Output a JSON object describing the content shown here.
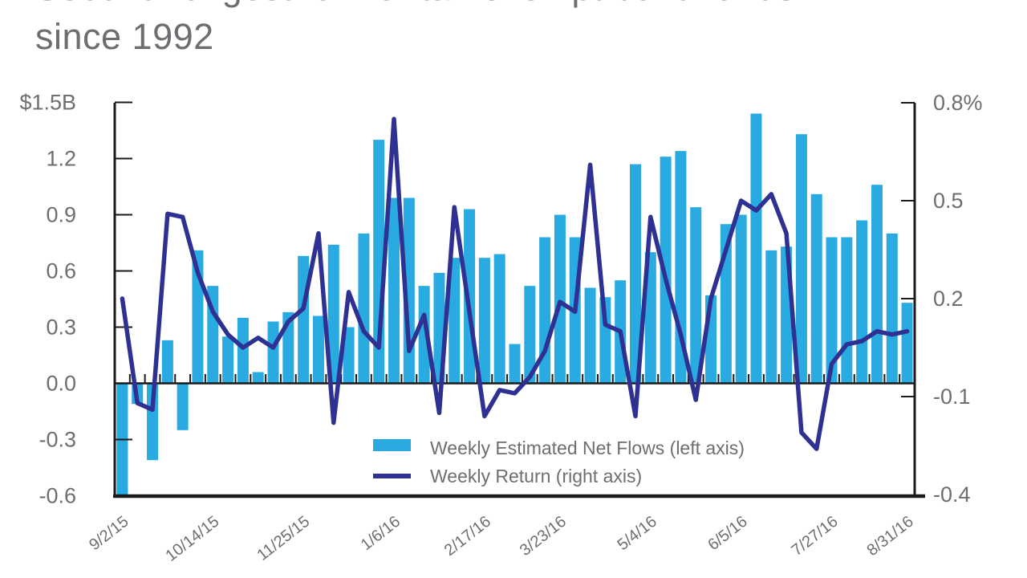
{
  "title": {
    "line1": "Second-longest run for tax-exempt bond funds",
    "line2": "since 1992"
  },
  "colors": {
    "bars": "#29abe2",
    "line": "#2e3192",
    "text_gray": "#6d6e71",
    "axis_black": "#1a1a1a"
  },
  "chart_data": {
    "type": "bar+line dual-axis",
    "weeks": 53,
    "x_tick_labels": [
      {
        "i": 0,
        "label": "9/2/15"
      },
      {
        "i": 6,
        "label": "10/14/15"
      },
      {
        "i": 12,
        "label": "11/25/15"
      },
      {
        "i": 18,
        "label": "1/6/16"
      },
      {
        "i": 24,
        "label": "2/17/16"
      },
      {
        "i": 29,
        "label": "3/23/16"
      },
      {
        "i": 35,
        "label": "5/4/16"
      },
      {
        "i": 41,
        "label": "6/5/16"
      },
      {
        "i": 47,
        "label": "7/27/16"
      },
      {
        "i": 52,
        "label": "8/31/16"
      }
    ],
    "left_axis": {
      "unit": "$B",
      "range": [
        -0.6,
        1.5
      ],
      "ticks": [
        {
          "v": 1.5,
          "label": "$1.5B"
        },
        {
          "v": 1.2,
          "label": "1.2"
        },
        {
          "v": 0.9,
          "label": "0.9"
        },
        {
          "v": 0.6,
          "label": "0.6"
        },
        {
          "v": 0.3,
          "label": "0.3"
        },
        {
          "v": 0.0,
          "label": "0.0"
        },
        {
          "v": -0.3,
          "label": "-0.3"
        },
        {
          "v": -0.6,
          "label": "-0.6"
        }
      ]
    },
    "right_axis": {
      "unit": "%",
      "range": [
        -0.4,
        0.8
      ],
      "ticks": [
        {
          "v": 0.8,
          "label": "0.8%"
        },
        {
          "v": 0.5,
          "label": "0.5"
        },
        {
          "v": 0.2,
          "label": "0.2"
        },
        {
          "v": -0.1,
          "label": "-0.1"
        },
        {
          "v": -0.4,
          "label": "-0.4"
        }
      ]
    },
    "series": [
      {
        "name": "Weekly Estimated Net Flows (left axis)",
        "type": "bar",
        "axis": "left",
        "values": [
          -0.6,
          -0.11,
          -0.41,
          0.23,
          -0.25,
          0.71,
          0.52,
          0.25,
          0.35,
          0.06,
          0.33,
          0.38,
          0.68,
          0.36,
          0.74,
          0.3,
          0.8,
          1.3,
          0.99,
          0.99,
          0.52,
          0.59,
          0.67,
          0.93,
          0.67,
          0.69,
          0.21,
          0.52,
          0.78,
          0.9,
          0.78,
          0.51,
          0.46,
          0.55,
          1.17,
          0.7,
          1.21,
          1.24,
          0.94,
          0.47,
          0.85,
          0.9,
          1.44,
          0.71,
          0.73,
          1.33,
          1.01,
          0.78,
          0.78,
          0.87,
          1.06,
          0.8,
          0.43
        ]
      },
      {
        "name": "Weekly Return (right axis)",
        "type": "line",
        "axis": "right",
        "values": [
          0.2,
          -0.12,
          -0.14,
          0.46,
          0.45,
          0.28,
          0.16,
          0.09,
          0.05,
          0.08,
          0.05,
          0.13,
          0.17,
          0.4,
          -0.18,
          0.22,
          0.1,
          0.05,
          0.75,
          0.04,
          0.15,
          -0.15,
          0.48,
          0.16,
          -0.16,
          -0.08,
          -0.09,
          -0.04,
          0.04,
          0.19,
          0.16,
          0.61,
          0.12,
          0.1,
          -0.16,
          0.45,
          0.26,
          0.09,
          -0.11,
          0.2,
          0.35,
          0.5,
          0.47,
          0.52,
          0.4,
          -0.21,
          -0.26,
          0.0,
          0.06,
          0.07,
          0.1,
          0.09,
          0.1
        ]
      }
    ],
    "legend_position": "inside-bottom-center",
    "grid": "off"
  }
}
